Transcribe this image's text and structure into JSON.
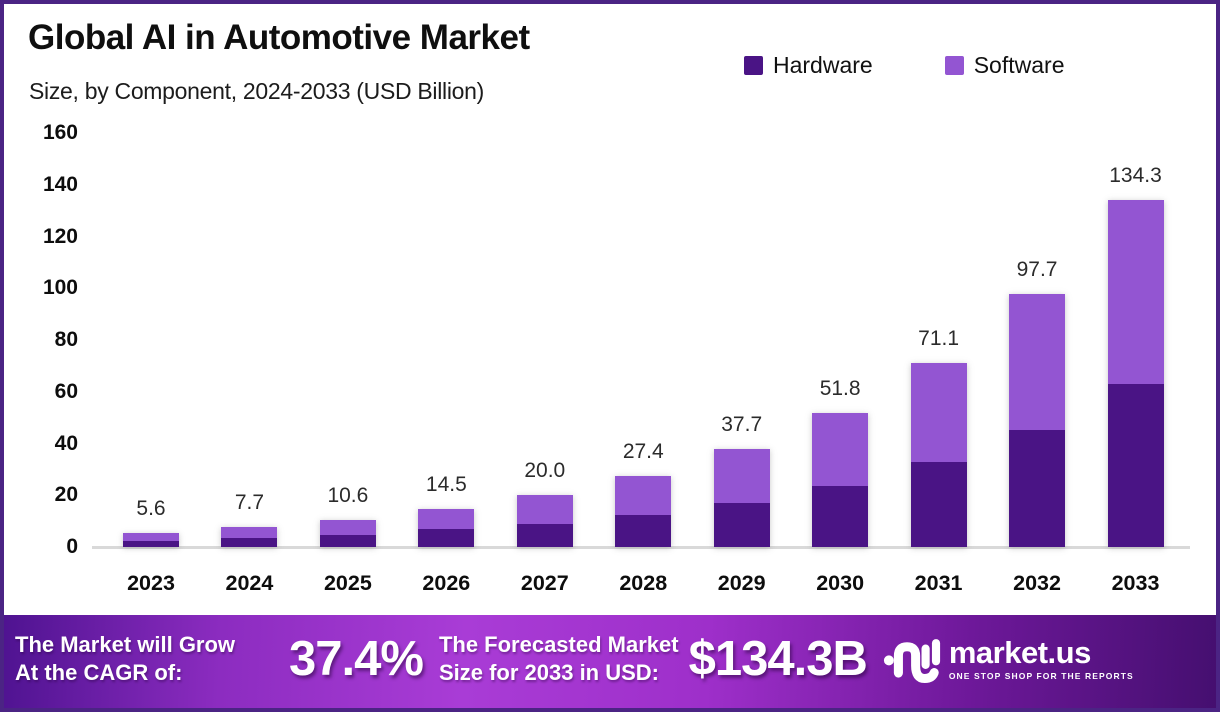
{
  "header": {
    "title": "Global AI in Automotive Market",
    "subtitle": "Size, by Component, 2024-2033 (USD Billion)"
  },
  "legend": {
    "items": [
      {
        "label": "Hardware",
        "color": "#4a1485"
      },
      {
        "label": "Software",
        "color": "#9355d2"
      }
    ]
  },
  "chart_data": {
    "type": "bar",
    "stacked": true,
    "title": "Global AI in Automotive Market Size, by Component, 2024-2033 (USD Billion)",
    "categories": [
      "2023",
      "2024",
      "2025",
      "2026",
      "2027",
      "2028",
      "2029",
      "2030",
      "2031",
      "2032",
      "2033"
    ],
    "series": [
      {
        "name": "Hardware",
        "color": "#4a1485",
        "values": [
          2.4,
          3.5,
          4.8,
          6.8,
          8.7,
          12.3,
          16.9,
          23.7,
          32.9,
          45.4,
          63.0
        ]
      },
      {
        "name": "Software",
        "color": "#9355d2",
        "values": [
          3.2,
          4.2,
          5.8,
          7.7,
          11.3,
          15.1,
          20.8,
          28.1,
          38.2,
          52.3,
          71.3
        ]
      }
    ],
    "totals": [
      5.6,
      7.7,
      10.6,
      14.5,
      20.0,
      27.4,
      37.7,
      51.8,
      71.1,
      97.7,
      134.3
    ],
    "total_labels": [
      "5.6",
      "7.7",
      "10.6",
      "14.5",
      "20.0",
      "27.4",
      "37.7",
      "51.8",
      "71.1",
      "97.7",
      "134.3"
    ],
    "xlabel": "",
    "ylabel": "",
    "ylim": [
      0,
      160
    ],
    "yticks": [
      0,
      20,
      40,
      60,
      80,
      100,
      120,
      140,
      160
    ],
    "grid": false,
    "legend_position": "top-right"
  },
  "footer": {
    "grow_line1": "The Market will Grow",
    "grow_line2": "At the CAGR of:",
    "cagr_value": "37.4%",
    "forecast_line1": "The Forecasted Market",
    "forecast_line2": "Size for 2033 in USD:",
    "forecast_value": "$134.3B",
    "logo_text": "market.us",
    "logo_tagline": "ONE STOP SHOP FOR THE REPORTS"
  },
  "colors": {
    "frame_border": "#4b2484",
    "baseline": "#d9d9d9",
    "hardware": "#4a1485",
    "software": "#9355d2",
    "banner_left": "#4f1391",
    "banner_mid": "#a93cd6",
    "banner_right": "#450f70"
  }
}
